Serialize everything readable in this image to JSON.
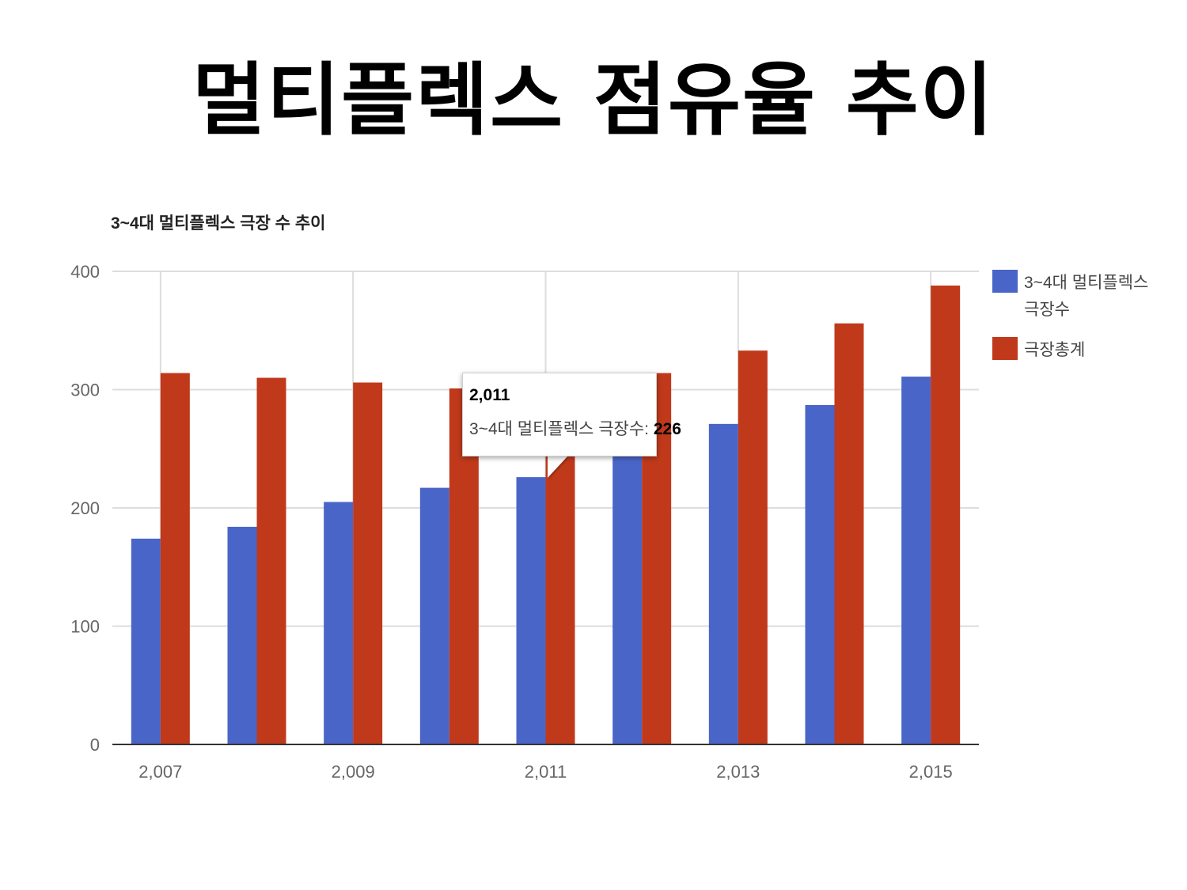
{
  "slide": {
    "title": "멀티플렉스 점유율 추이"
  },
  "chart_data": {
    "type": "bar",
    "title": "3~4대 멀티플렉스 극장 수 추이",
    "xlabel": "",
    "ylabel": "",
    "x": [
      2007,
      2008,
      2009,
      2010,
      2011,
      2012,
      2013,
      2014,
      2015
    ],
    "x_tick_labels": [
      "2,007",
      "2,009",
      "2,011",
      "2,013",
      "2,015"
    ],
    "x_tick_values": [
      2007,
      2009,
      2011,
      2013,
      2015
    ],
    "y_ticks": [
      0,
      100,
      200,
      300,
      400
    ],
    "ylim": [
      0,
      400
    ],
    "grid": true,
    "legend_position": "right",
    "series": [
      {
        "name": "3~4대 멀티플렉스 극장수",
        "color": "#4a65c8",
        "values": [
          174,
          184,
          205,
          217,
          226,
          246,
          271,
          287,
          311
        ]
      },
      {
        "name": "극장총계",
        "color": "#c0391b",
        "values": [
          314,
          310,
          306,
          301,
          302,
          314,
          333,
          356,
          388
        ]
      }
    ],
    "tooltip": {
      "x_label": "2,011",
      "series_label": "3~4대 멀티플렉스 극장수: ",
      "value_label": "226"
    }
  }
}
